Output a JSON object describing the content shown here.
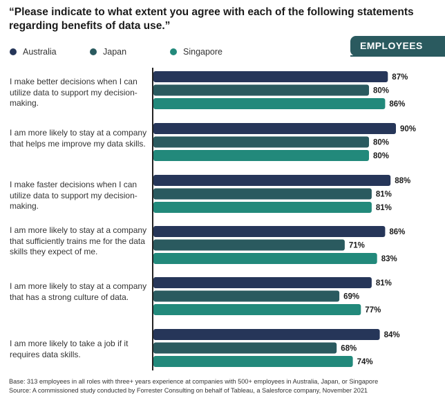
{
  "title": "“Please indicate to what extent you agree with each of the following statements regarding benefits of data use.”",
  "badge": "EMPLOYEES",
  "colors": {
    "Australia": "#263659",
    "Japan": "#2a5a5f",
    "Singapore": "#22897b"
  },
  "chart_data": {
    "type": "bar",
    "orientation": "horizontal",
    "categories": [
      "I make better decisions when I can utilize data to support my decision-making.",
      "I am more likely to stay at a company that helps me improve my data skills.",
      "I make faster decisions when I can utilize data to support my decision-making.",
      "I am more likely to stay at a company that sufficiently trains me for the data skills they expect of me.",
      "I am more likely to stay at a company that has a strong culture of data.",
      "I am more likely to take a job if it requires data skills."
    ],
    "series": [
      {
        "name": "Australia",
        "values": [
          87,
          90,
          88,
          86,
          81,
          84
        ]
      },
      {
        "name": "Japan",
        "values": [
          80,
          80,
          81,
          71,
          69,
          68
        ]
      },
      {
        "name": "Singapore",
        "values": [
          86,
          80,
          81,
          83,
          77,
          74
        ]
      }
    ],
    "value_suffix": "%",
    "legend_position": "top-left",
    "grid": false
  },
  "footer": {
    "base": "Base: 313 employees in all roles with three+ years experience at companies with 500+ employees in Australia, Japan, or Singapore",
    "source": "Source: A commissioned study conducted by Forrester Consulting on behalf of Tableau, a Salesforce company, November 2021"
  }
}
